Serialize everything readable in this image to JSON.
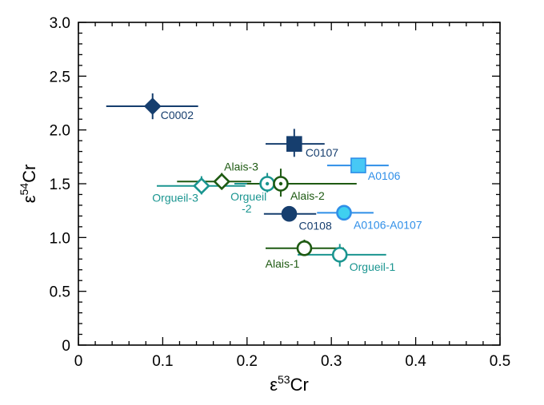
{
  "chart_data": {
    "type": "scatter",
    "xlabel": {
      "prefix": "ε",
      "sup": "53",
      "suffix": "Cr"
    },
    "ylabel": {
      "prefix": "ε",
      "sup": "54",
      "suffix": "Cr"
    },
    "xlim": [
      0,
      0.5
    ],
    "ylim": [
      0,
      3.0
    ],
    "x_ticks": [
      "0",
      "0.1",
      "0.2",
      "0.3",
      "0.4",
      "0.5"
    ],
    "y_ticks": [
      "0",
      "0.5",
      "1.0",
      "1.5",
      "2.0",
      "2.5",
      "3.0"
    ],
    "grid": false,
    "colors": {
      "navy": "#163e6e",
      "green": "#1e5a12",
      "teal": "#1a9590",
      "light_blue": "#2f8fe8",
      "light_blue_fill": "#47c8f5",
      "cyan_fill": "#3fd0f0"
    },
    "points": [
      {
        "label": "C0002",
        "x": 0.088,
        "y": 2.22,
        "xerr": [
          0.033,
          0.142
        ],
        "yerr": [
          2.1,
          2.34
        ],
        "marker": "diamond",
        "fill": "#163e6e",
        "stroke": "#163e6e",
        "color": "#163e6e"
      },
      {
        "label": "C0107",
        "x": 0.256,
        "y": 1.87,
        "xerr": [
          0.222,
          0.292
        ],
        "yerr": [
          1.75,
          2.01
        ],
        "marker": "square",
        "fill": "#163e6e",
        "stroke": "#163e6e",
        "color": "#163e6e"
      },
      {
        "label": "A0106",
        "x": 0.332,
        "y": 1.67,
        "xerr": [
          0.295,
          0.368
        ],
        "yerr": [
          1.6,
          1.74
        ],
        "marker": "square",
        "fill": "#47c8f5",
        "stroke": "#2f8fe8",
        "color": "#2f8fe8"
      },
      {
        "label": "Alais-3",
        "x": 0.17,
        "y": 1.52,
        "xerr": [
          0.117,
          0.205
        ],
        "yerr": [
          1.45,
          1.6
        ],
        "marker": "diamond",
        "fill": "#ffffff",
        "stroke": "#1e5a12",
        "color": "#1e5a12"
      },
      {
        "label": "Orgueil-3",
        "x": 0.146,
        "y": 1.48,
        "xerr": [
          0.093,
          0.198
        ],
        "yerr": [
          1.4,
          1.57
        ],
        "marker": "diamond",
        "fill": "#ffffff",
        "stroke": "#1a9590",
        "color": "#1a9590"
      },
      {
        "label": "Orgueil-2",
        "x": 0.224,
        "y": 1.5,
        "xerr": [
          0.185,
          0.26
        ],
        "yerr": [
          1.42,
          1.6
        ],
        "marker": "circle-dot",
        "fill": "#ffffff",
        "stroke": "#1a9590",
        "color": "#1a9590"
      },
      {
        "label": "Alais-2",
        "x": 0.24,
        "y": 1.5,
        "xerr": [
          0.2,
          0.33
        ],
        "yerr": [
          1.38,
          1.64
        ],
        "marker": "circle-dot",
        "fill": "#ffffff",
        "stroke": "#1e5a12",
        "color": "#1e5a12"
      },
      {
        "label": "C0108",
        "x": 0.25,
        "y": 1.22,
        "xerr": [
          0.22,
          0.282
        ],
        "yerr": [
          1.22,
          1.22
        ],
        "marker": "circle",
        "fill": "#163e6e",
        "stroke": "#163e6e",
        "color": "#163e6e"
      },
      {
        "label": "A0106-A0107",
        "x": 0.315,
        "y": 1.23,
        "xerr": [
          0.283,
          0.35
        ],
        "yerr": [
          1.23,
          1.23
        ],
        "marker": "circle",
        "fill": "#3fd0f0",
        "stroke": "#2f8fe8",
        "color": "#2f8fe8"
      },
      {
        "label": "Alais-1",
        "x": 0.268,
        "y": 0.9,
        "xerr": [
          0.222,
          0.315
        ],
        "yerr": [
          0.83,
          0.98
        ],
        "marker": "circle",
        "fill": "#ffffff",
        "stroke": "#1e5a12",
        "color": "#1e5a12"
      },
      {
        "label": "Orgueil-1",
        "x": 0.31,
        "y": 0.84,
        "xerr": [
          0.26,
          0.365
        ],
        "yerr": [
          0.73,
          0.94
        ],
        "marker": "circle",
        "fill": "#ffffff",
        "stroke": "#1a9590",
        "color": "#1a9590"
      }
    ]
  }
}
